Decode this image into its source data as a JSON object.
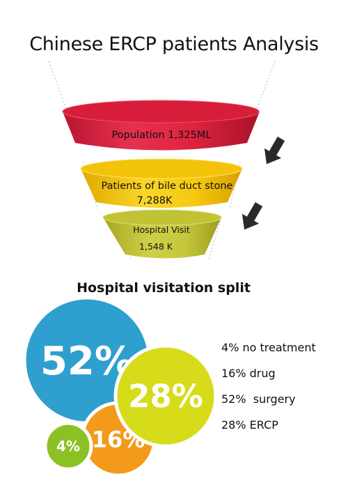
{
  "title": "Chinese ERCP patients Analysis",
  "funnel": {
    "stages": [
      {
        "label": "Population 1,325ML",
        "color": "#e0223f"
      },
      {
        "label": "Patients of bile duct stone",
        "value": "7,288K",
        "color": "#f5c814"
      },
      {
        "label": "Hospital Visit",
        "value": "1,548 K",
        "color": "#c4c43a"
      }
    ]
  },
  "split": {
    "title": "Hospital visitation split",
    "legend": [
      "4% no treatment",
      "16% drug",
      "52%  surgery",
      "28% ERCP"
    ]
  },
  "chart_data": [
    {
      "type": "funnel",
      "title": "Chinese ERCP patients Analysis",
      "categories": [
        "Population",
        "Patients of bile duct stone",
        "Hospital Visit"
      ],
      "value_labels": [
        "1,325ML",
        "7,288K",
        "1,548 K"
      ]
    },
    {
      "type": "bubble",
      "title": "Hospital visitation split",
      "categories": [
        "no treatment",
        "drug",
        "surgery",
        "ERCP"
      ],
      "values": [
        4,
        16,
        52,
        28
      ],
      "unit": "%",
      "colors": {
        "surgery": "#2f9fd0",
        "ERCP": "#d6dc1a",
        "drug": "#f39a1b",
        "no treatment": "#8cc126"
      }
    }
  ]
}
